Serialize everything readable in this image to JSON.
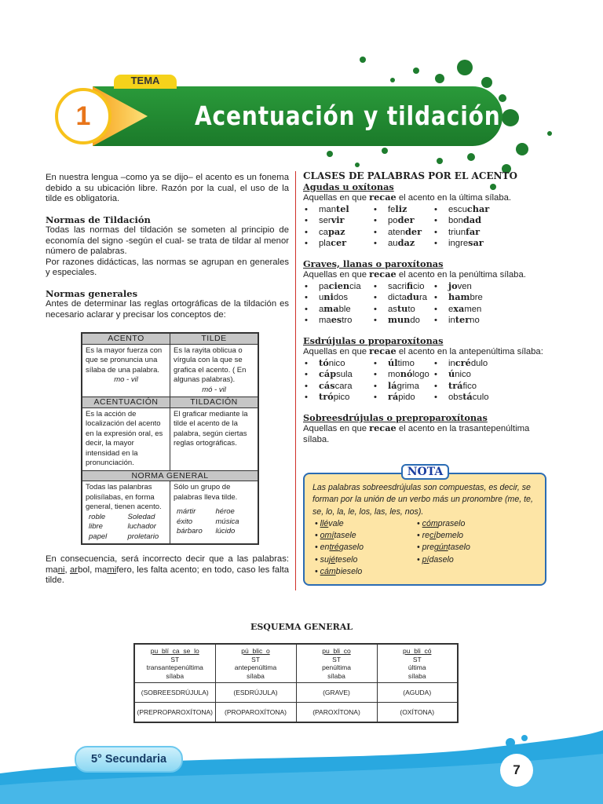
{
  "header": {
    "tag": "TEMA",
    "number": "1",
    "title": "Acentuación y tildación"
  },
  "left": {
    "intro": "En nuestra lengua –como ya se dijo– el acento es un fonema debido a su ubicación libre. Razón por la cual, el uso de la tilde es obligatoria.",
    "h1": "Normas de Tildación",
    "p1": "Todas las normas del tildación se someten al principio de economía del signo -según el cual- se trata de tildar al menor número de palabras.",
    "p2": "Por razones didácticas, las normas se agrupan en generales y especiales.",
    "h2": "Normas generales",
    "p3": "Antes de determinar las reglas ortográficas de la tildación es necesario aclarar y precisar los conceptos de:",
    "concepts": {
      "h_acento": "ACENTO",
      "h_tilde": "TILDE",
      "acento": "Es la mayor fuerza con que se pronuncia una sílaba de una palabra.",
      "acento_ex": "mo - vil",
      "tilde": "Es la rayita oblicua o vírgula con la que se grafica el acento. ( En algunas palabras).",
      "tilde_ex": "mó - vil",
      "h_acentuacion": "ACENTUACIÓN",
      "h_tildacion": "TILDACIÓN",
      "acentuacion": "Es la acción de localización del acento en la expresión oral, es decir, la mayor intensidad en la pronunciación.",
      "tildacion": "El graficar mediante la tilde el acento de la palabra, según ciertas reglas ortográficas.",
      "h_norma": "NORMA GENERAL",
      "norma_left": "Todas las palanbras polisílabas, en forma general, tienen acento.",
      "norma_left_ex": [
        "roble",
        "Soledad",
        "libre",
        "luchador",
        "papel",
        "proletario"
      ],
      "norma_right": "Sólo un grupo de palabras lleva tilde.",
      "norma_right_ex": [
        "mártir",
        "héroe",
        "éxito",
        "música",
        "bárbaro",
        "lúcido"
      ]
    },
    "conclusion_pre": "En consecuencia, será incorrecto decir que a las palabras: ma",
    "conclusion_u1": "ni",
    "conclusion_mid1": ", ",
    "conclusion_u2": "ar",
    "conclusion_mid2": "bol, ma",
    "conclusion_u3": "mi",
    "conclusion_post": "fero, les falta acento; en todo, caso les falta tilde."
  },
  "right": {
    "title": "CLASES DE PALABRAS POR EL ACENTO",
    "groups": [
      {
        "name": "Agudas u oxítonas",
        "desc_pre": "Aquellas en que ",
        "desc_bold": "recae",
        "desc_post": " el acento en la última sílaba.",
        "words": [
          [
            "man",
            "tel",
            ""
          ],
          [
            "fe",
            "liz",
            ""
          ],
          [
            "escu",
            "char",
            ""
          ],
          [
            "ser",
            "vir",
            ""
          ],
          [
            "po",
            "der",
            ""
          ],
          [
            "bon",
            "dad",
            ""
          ],
          [
            "ca",
            "paz",
            ""
          ],
          [
            "aten",
            "der",
            ""
          ],
          [
            "triun",
            "far",
            ""
          ],
          [
            "pla",
            "cer",
            ""
          ],
          [
            "au",
            "daz",
            ""
          ],
          [
            "ingre",
            "sar",
            ""
          ]
        ]
      },
      {
        "name": "Graves, llanas o paroxítonas",
        "desc_pre": "Aquellas en que ",
        "desc_bold": "recae",
        "desc_post": " el acento en la penúltima sílaba.",
        "words": [
          [
            "pa",
            "cien",
            "cia"
          ],
          [
            "sacri",
            "fi",
            "cio"
          ],
          [
            "",
            "jo",
            "ven"
          ],
          [
            "u",
            "ni",
            "dos"
          ],
          [
            "dicta",
            "du",
            "ra"
          ],
          [
            "",
            "ham",
            "bre"
          ],
          [
            "a",
            "ma",
            "ble"
          ],
          [
            "as",
            "tu",
            "to"
          ],
          [
            "e",
            "xa",
            "men"
          ],
          [
            "ma",
            "es",
            "tro"
          ],
          [
            "",
            "mun",
            "do"
          ],
          [
            "in",
            "ter",
            "no"
          ]
        ]
      },
      {
        "name": "Esdrújulas o proparoxítonas",
        "desc_pre": "Aquellas en que ",
        "desc_bold": "recae",
        "desc_post": " el acento en la antepenúltima sílaba:",
        "words": [
          [
            "",
            "tó",
            "nico"
          ],
          [
            "",
            "úl",
            "timo"
          ],
          [
            "in",
            "cré",
            "dulo"
          ],
          [
            "",
            "cáp",
            "sula"
          ],
          [
            "mo",
            "nó",
            "logo"
          ],
          [
            "",
            "ú",
            "nico"
          ],
          [
            "",
            "cás",
            "cara"
          ],
          [
            "",
            "lá",
            "grima"
          ],
          [
            "",
            "trá",
            "fico"
          ],
          [
            "",
            "tró",
            "pico"
          ],
          [
            "",
            "rá",
            "pido"
          ],
          [
            "obs",
            "tá",
            "culo"
          ]
        ]
      },
      {
        "name": "Sobreesdrújulas o preproparoxítonas",
        "desc_pre": "Aquellas en que ",
        "desc_bold": "recae",
        "desc_post": " el acento en la trasantepenúltima sílaba.",
        "words": []
      }
    ]
  },
  "nota": {
    "label": "NOTA",
    "text": "Las palabras sobreesdrújulas son compuestas, es decir, se forman por la unión de un verbo más un pronombre (me, te, se, lo, la, le, los, las, les, nos).",
    "words": [
      [
        "",
        "llé",
        "vale"
      ],
      [
        "",
        "cóm",
        "praselo"
      ],
      [
        "",
        "omí",
        "tasele"
      ],
      [
        "re",
        "cí",
        "bemelo"
      ],
      [
        "en",
        "tré",
        "gaselo"
      ],
      [
        "pre",
        "gún",
        "taselo"
      ],
      [
        "su",
        "jé",
        "teselo"
      ],
      [
        "",
        "pí",
        "daselo"
      ],
      [
        "",
        "cám",
        "bieselo"
      ]
    ]
  },
  "esquema": {
    "title": "ESQUEMA GENERAL",
    "cols": [
      {
        "syl": "pu  blí  ca  se  lo",
        "st": "ST",
        "pos": "transantepenúltima",
        "sil": "sílaba",
        "name": "(SOBREESDRÚJULA)",
        "alt": "(PREPROPAROXÍTONA)"
      },
      {
        "syl": "pú  blic  o",
        "st": "ST",
        "pos": "antepenúltima",
        "sil": "sílaba",
        "name": "(ESDRÚJULA)",
        "alt": "(PROPAROXÍTONA)"
      },
      {
        "syl": "pu  bli  co",
        "st": "ST",
        "pos": "penúltima",
        "sil": "sílaba",
        "name": "(GRAVE)",
        "alt": "(PAROXÍTONA)"
      },
      {
        "syl": "pu  bli  có",
        "st": "ST",
        "pos": "última",
        "sil": "sílaba",
        "name": "(AGUDA)",
        "alt": "(OXÍTONA)"
      }
    ]
  },
  "footer": {
    "grade": "5° Secundaria",
    "page": "7"
  },
  "colors": {
    "banner": "#1e8a30",
    "accent_orange": "#f7a21b",
    "nota_bg": "#fde5a6",
    "nota_border": "#2b6cb4",
    "footer_blue": "#29a8e0"
  }
}
